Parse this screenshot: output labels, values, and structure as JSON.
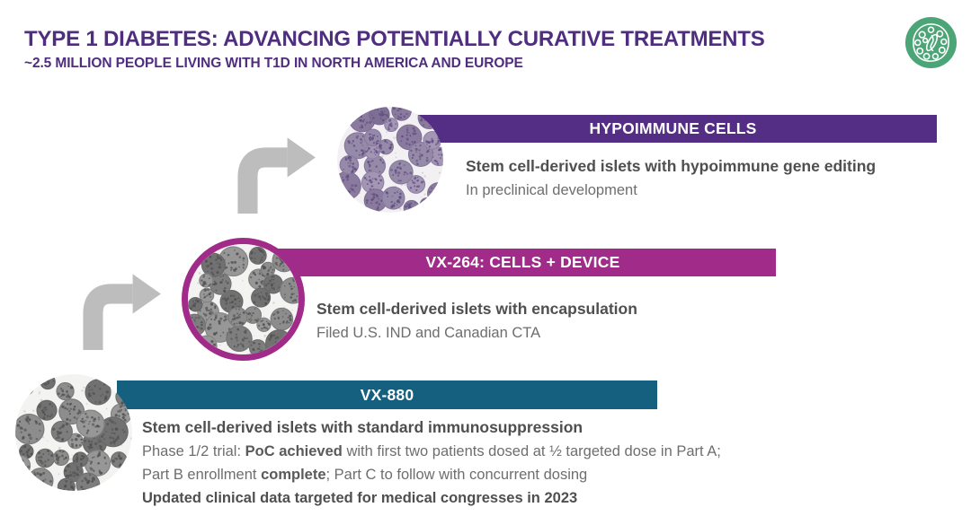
{
  "header": {
    "title": "TYPE 1 DIABETES: ADVANCING POTENTIALLY CURATIVE TREATMENTS",
    "subtitle": "~2.5 MILLION PEOPLE LIVING WITH T1D IN NORTH AMERICA AND EUROPE"
  },
  "icons": {
    "logo": "islet-cell-logo",
    "arrow": "bent-arrow-up-right"
  },
  "tiers": [
    {
      "id": "hypoimmune-cells",
      "banner": "HYPOIMMUNE CELLS",
      "headline": "Stem cell-derived islets with hypoimmune gene editing",
      "status": "In preclinical development"
    },
    {
      "id": "vx-264",
      "banner": "VX-264: CELLS + DEVICE",
      "headline": "Stem cell-derived islets with encapsulation",
      "status": "Filed U.S. IND and Canadian CTA"
    },
    {
      "id": "vx-880",
      "banner": "VX-880",
      "headline": "Stem cell-derived islets with standard immunosuppression",
      "phase_prefix": "Phase 1/2 trial: ",
      "phase_bold": "PoC achieved",
      "phase_rest": " with first two patients dosed at ½ targeted dose in Part A;",
      "partb_prefix": "Part B enrollment ",
      "partb_bold": "complete",
      "partb_rest": "; Part C to follow with concurrent dosing",
      "update_line": "Updated clinical data targeted for medical congresses in 2023"
    }
  ],
  "colors": {
    "title_purple": "#4F2D7F",
    "banner_purple": "#542E85",
    "banner_magenta": "#A02B89",
    "banner_teal": "#15607F",
    "banner_text": "#FFFFFF",
    "arrow_gray": "#BDBDBD",
    "logo_green": "#4BA577",
    "headline_gray": "#4F4F4F",
    "body_gray": "#6E6E6E"
  }
}
